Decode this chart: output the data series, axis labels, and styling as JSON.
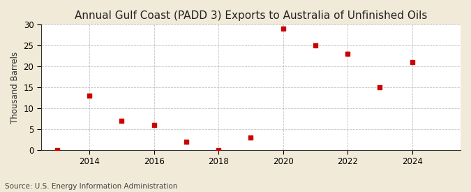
{
  "title": "Annual Gulf Coast (PADD 3) Exports to Australia of Unfinished Oils",
  "ylabel": "Thousand Barrels",
  "source": "Source: U.S. Energy Information Administration",
  "background_color": "#f2ead8",
  "plot_bg_color": "#ffffff",
  "years": [
    2013,
    2014,
    2015,
    2016,
    2017,
    2018,
    2019,
    2020,
    2021,
    2022,
    2023,
    2024
  ],
  "values": [
    0,
    13,
    7,
    6,
    2,
    0,
    3,
    29,
    25,
    23,
    15,
    21
  ],
  "marker_color": "#cc0000",
  "marker_size": 18,
  "ylim": [
    0,
    30
  ],
  "yticks": [
    0,
    5,
    10,
    15,
    20,
    25,
    30
  ],
  "xlim": [
    2012.5,
    2025.5
  ],
  "xticks": [
    2014,
    2016,
    2018,
    2020,
    2022,
    2024
  ],
  "title_fontsize": 11,
  "axis_fontsize": 8.5,
  "source_fontsize": 7.5,
  "grid_color": "#aaaaaa",
  "spine_color": "#333333"
}
